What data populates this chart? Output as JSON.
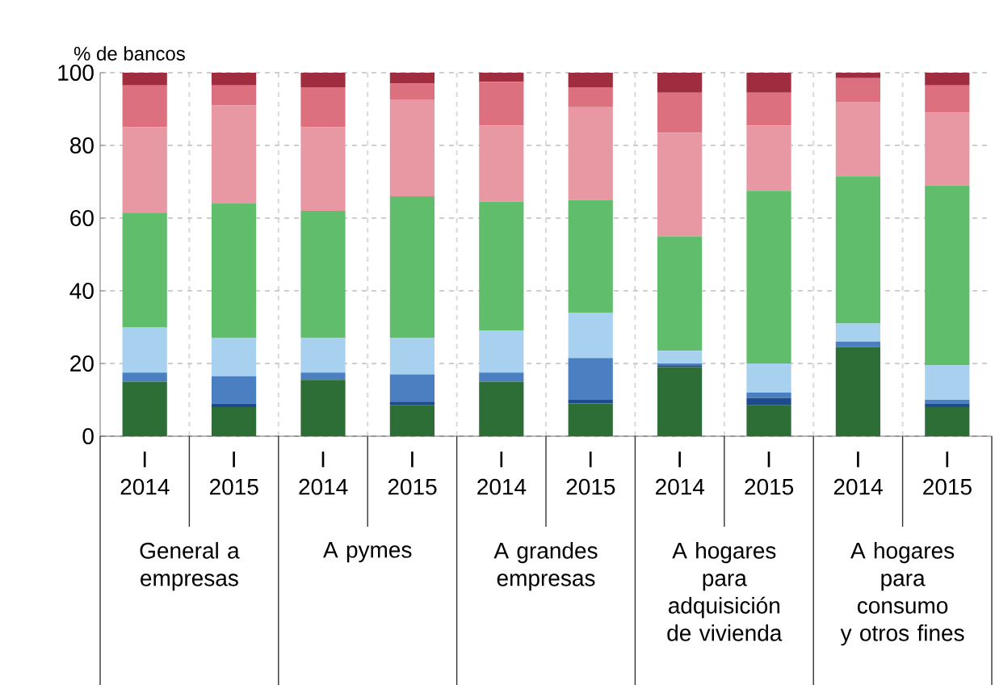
{
  "chart_data": {
    "type": "bar",
    "stacked": true,
    "ylabel": "% de bancos",
    "categories": [
      "I 2014",
      "I 2015",
      "I 2014",
      "I 2015",
      "I 2014",
      "I 2015",
      "I 2014",
      "I 2015",
      "I 2014",
      "I 2015"
    ],
    "annotations": [
      "General a empresas",
      "A pymes",
      "A grandes empresas",
      "A hogares para adquisición de vivienda",
      "A hogares para consumo y otros fines"
    ],
    "series": [
      {
        "color": "#2d6e37",
        "values": [
          15,
          8,
          15.5,
          8.5,
          15,
          9,
          19,
          8.5,
          24.5,
          8
        ]
      },
      {
        "color": "#1f4a8c",
        "values": [
          0,
          1,
          0,
          1,
          0,
          1,
          0.5,
          2,
          0,
          1
        ]
      },
      {
        "color": "#4a7fc1",
        "values": [
          2.5,
          7.5,
          2,
          7.5,
          2.5,
          11.5,
          0.5,
          1.5,
          1.5,
          1
        ]
      },
      {
        "color": "#a8d0ef",
        "values": [
          12.5,
          10.5,
          9.5,
          10,
          11.5,
          12.5,
          3.5,
          8,
          5,
          9.5
        ]
      },
      {
        "color": "#5fbd6b",
        "values": [
          31.5,
          37,
          35,
          39,
          35.5,
          31,
          31.5,
          47.5,
          40.5,
          49.5
        ]
      },
      {
        "color": "#e898a3",
        "values": [
          23.5,
          27,
          23,
          26.5,
          21,
          25.5,
          28.5,
          18,
          20.5,
          20
        ]
      },
      {
        "color": "#dc707e",
        "values": [
          11.5,
          5.5,
          11,
          4.5,
          12,
          5.5,
          11,
          9,
          6.5,
          7.5
        ]
      },
      {
        "color": "#a02c40",
        "values": [
          3.5,
          3.5,
          4,
          3,
          2.5,
          4,
          5.5,
          5.5,
          1.5,
          3.5
        ]
      }
    ],
    "ylim": [
      0,
      100
    ],
    "yticks": [
      0,
      20,
      40,
      60,
      80,
      100
    ],
    "grid": "y"
  }
}
